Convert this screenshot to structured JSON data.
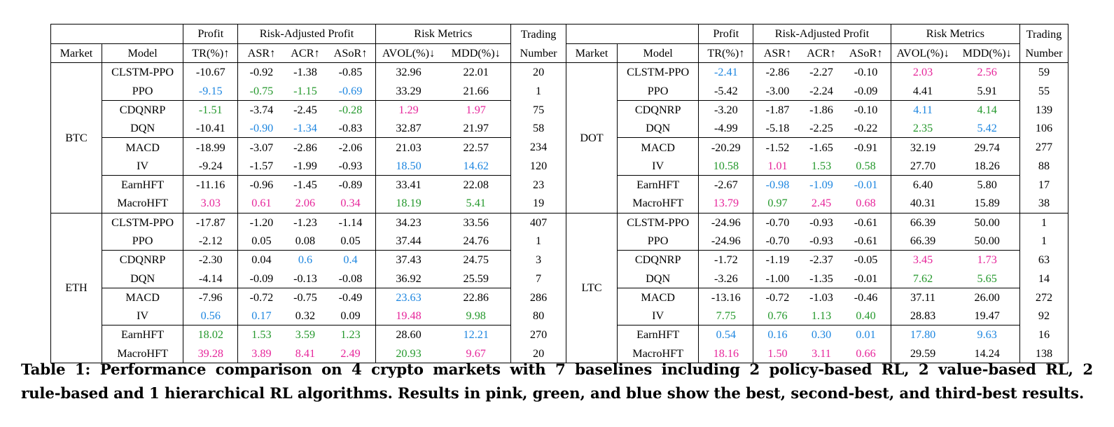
{
  "headers": {
    "profit": "Profit",
    "risk_adjusted": "Risk-Adjusted Profit",
    "risk_metrics": "Risk Metrics",
    "trading": "Trading",
    "number": "Number",
    "market": "Market",
    "model": "Model",
    "tr": "TR(%)↑",
    "asr": "ASR↑",
    "acr": "ACR↑",
    "asor": "ASoR↑",
    "avol": "AVOL(%)↓",
    "mdd": "MDD(%)↓"
  },
  "colors": {
    "pink": "#e6259a",
    "green": "#24982c",
    "blue": "#1d86e0",
    "legend": {
      "pink": "best",
      "green": "second-best",
      "blue": "third-best"
    }
  },
  "left_blocks": [
    {
      "market": "BTC",
      "rows": [
        {
          "model": "CLSTM-PPO",
          "v": [
            "-10.67",
            "-0.92",
            "-1.38",
            "-0.85",
            "32.96",
            "22.01",
            "20"
          ],
          "c": [
            "",
            "",
            "",
            "",
            "",
            "",
            ""
          ]
        },
        {
          "model": "PPO",
          "v": [
            "-9.15",
            "-0.75",
            "-1.15",
            "-0.69",
            "33.29",
            "21.66",
            "1"
          ],
          "c": [
            "blue",
            "green",
            "green",
            "blue",
            "",
            "",
            ""
          ]
        },
        {
          "model": "CDQNRP",
          "v": [
            "-1.51",
            "-3.74",
            "-2.45",
            "-0.28",
            "1.29",
            "1.97",
            "75"
          ],
          "c": [
            "green",
            "",
            "",
            "green",
            "pink",
            "pink",
            ""
          ]
        },
        {
          "model": "DQN",
          "v": [
            "-10.41",
            "-0.90",
            "-1.34",
            "-0.83",
            "32.87",
            "21.97",
            "58"
          ],
          "c": [
            "",
            "blue",
            "blue",
            "",
            "",
            "",
            ""
          ]
        },
        {
          "model": "MACD",
          "v": [
            "-18.99",
            "-3.07",
            "-2.86",
            "-2.06",
            "21.03",
            "22.57",
            "234"
          ],
          "c": [
            "",
            "",
            "",
            "",
            "",
            "",
            ""
          ]
        },
        {
          "model": "IV",
          "v": [
            "-9.24",
            "-1.57",
            "-1.99",
            "-0.93",
            "18.50",
            "14.62",
            "120"
          ],
          "c": [
            "",
            "",
            "",
            "",
            "blue",
            "blue",
            ""
          ]
        },
        {
          "model": "EarnHFT",
          "v": [
            "-11.16",
            "-0.96",
            "-1.45",
            "-0.89",
            "33.41",
            "22.08",
            "23"
          ],
          "c": [
            "",
            "",
            "",
            "",
            "",
            "",
            ""
          ]
        },
        {
          "model": "MacroHFT",
          "v": [
            "3.03",
            "0.61",
            "2.06",
            "0.34",
            "18.19",
            "5.41",
            "19"
          ],
          "c": [
            "pink",
            "pink",
            "pink",
            "pink",
            "green",
            "green",
            ""
          ]
        }
      ]
    },
    {
      "market": "ETH",
      "rows": [
        {
          "model": "CLSTM-PPO",
          "v": [
            "-17.87",
            "-1.20",
            "-1.23",
            "-1.14",
            "34.23",
            "33.56",
            "407"
          ],
          "c": [
            "",
            "",
            "",
            "",
            "",
            "",
            ""
          ]
        },
        {
          "model": "PPO",
          "v": [
            "-2.12",
            "0.05",
            "0.08",
            "0.05",
            "37.44",
            "24.76",
            "1"
          ],
          "c": [
            "",
            "",
            "",
            "",
            "",
            "",
            ""
          ]
        },
        {
          "model": "CDQNRP",
          "v": [
            "-2.30",
            "0.04",
            "0.6",
            "0.4",
            "37.43",
            "24.75",
            "3"
          ],
          "c": [
            "",
            "",
            "blue",
            "blue",
            "",
            "",
            ""
          ]
        },
        {
          "model": "DQN",
          "v": [
            "-4.14",
            "-0.09",
            "-0.13",
            "-0.08",
            "36.92",
            "25.59",
            "7"
          ],
          "c": [
            "",
            "",
            "",
            "",
            "",
            "",
            ""
          ]
        },
        {
          "model": "MACD",
          "v": [
            "-7.96",
            "-0.72",
            "-0.75",
            "-0.49",
            "23.63",
            "22.86",
            "286"
          ],
          "c": [
            "",
            "",
            "",
            "",
            "blue",
            "",
            ""
          ]
        },
        {
          "model": "IV",
          "v": [
            "0.56",
            "0.17",
            "0.32",
            "0.09",
            "19.48",
            "9.98",
            "80"
          ],
          "c": [
            "blue",
            "blue",
            "",
            "",
            "pink",
            "green",
            ""
          ]
        },
        {
          "model": "EarnHFT",
          "v": [
            "18.02",
            "1.53",
            "3.59",
            "1.23",
            "28.60",
            "12.21",
            "270"
          ],
          "c": [
            "green",
            "green",
            "green",
            "green",
            "",
            "blue",
            ""
          ]
        },
        {
          "model": "MacroHFT",
          "v": [
            "39.28",
            "3.89",
            "8.41",
            "2.49",
            "20.93",
            "9.67",
            "20"
          ],
          "c": [
            "pink",
            "pink",
            "pink",
            "pink",
            "green",
            "pink",
            ""
          ]
        }
      ]
    }
  ],
  "right_blocks": [
    {
      "market": "DOT",
      "rows": [
        {
          "model": "CLSTM-PPO",
          "v": [
            "-2.41",
            "-2.86",
            "-2.27",
            "-0.10",
            "2.03",
            "2.56",
            "59"
          ],
          "c": [
            "blue",
            "",
            "",
            "",
            "pink",
            "pink",
            ""
          ]
        },
        {
          "model": "PPO",
          "v": [
            "-5.42",
            "-3.00",
            "-2.24",
            "-0.09",
            "4.41",
            "5.91",
            "55"
          ],
          "c": [
            "",
            "",
            "",
            "",
            "",
            "",
            ""
          ]
        },
        {
          "model": "CDQNRP",
          "v": [
            "-3.20",
            "-1.87",
            "-1.86",
            "-0.10",
            "4.11",
            "4.14",
            "139"
          ],
          "c": [
            "",
            "",
            "",
            "",
            "blue",
            "green",
            ""
          ]
        },
        {
          "model": "DQN",
          "v": [
            "-4.99",
            "-5.18",
            "-2.25",
            "-0.22",
            "2.35",
            "5.42",
            "106"
          ],
          "c": [
            "",
            "",
            "",
            "",
            "green",
            "blue",
            ""
          ]
        },
        {
          "model": "MACD",
          "v": [
            "-20.29",
            "-1.52",
            "-1.65",
            "-0.91",
            "32.19",
            "29.74",
            "277"
          ],
          "c": [
            "",
            "",
            "",
            "",
            "",
            "",
            ""
          ]
        },
        {
          "model": "IV",
          "v": [
            "10.58",
            "1.01",
            "1.53",
            "0.58",
            "27.70",
            "18.26",
            "88"
          ],
          "c": [
            "green",
            "pink",
            "green",
            "green",
            "",
            "",
            ""
          ]
        },
        {
          "model": "EarnHFT",
          "v": [
            "-2.67",
            "-0.98",
            "-1.09",
            "-0.01",
            "6.40",
            "5.80",
            "17"
          ],
          "c": [
            "",
            "blue",
            "blue",
            "blue",
            "",
            "",
            ""
          ]
        },
        {
          "model": "MacroHFT",
          "v": [
            "13.79",
            "0.97",
            "2.45",
            "0.68",
            "40.31",
            "15.89",
            "38"
          ],
          "c": [
            "pink",
            "green",
            "pink",
            "pink",
            "",
            "",
            ""
          ]
        }
      ]
    },
    {
      "market": "LTC",
      "rows": [
        {
          "model": "CLSTM-PPO",
          "v": [
            "-24.96",
            "-0.70",
            "-0.93",
            "-0.61",
            "66.39",
            "50.00",
            "1"
          ],
          "c": [
            "",
            "",
            "",
            "",
            "",
            "",
            ""
          ]
        },
        {
          "model": "PPO",
          "v": [
            "-24.96",
            "-0.70",
            "-0.93",
            "-0.61",
            "66.39",
            "50.00",
            "1"
          ],
          "c": [
            "",
            "",
            "",
            "",
            "",
            "",
            ""
          ]
        },
        {
          "model": "CDQNRP",
          "v": [
            "-1.72",
            "-1.19",
            "-2.37",
            "-0.05",
            "3.45",
            "1.73",
            "63"
          ],
          "c": [
            "",
            "",
            "",
            "",
            "pink",
            "pink",
            ""
          ]
        },
        {
          "model": "DQN",
          "v": [
            "-3.26",
            "-1.00",
            "-1.35",
            "-0.01",
            "7.62",
            "5.65",
            "14"
          ],
          "c": [
            "",
            "",
            "",
            "",
            "green",
            "green",
            ""
          ]
        },
        {
          "model": "MACD",
          "v": [
            "-13.16",
            "-0.72",
            "-1.03",
            "-0.46",
            "37.11",
            "26.00",
            "272"
          ],
          "c": [
            "",
            "",
            "",
            "",
            "",
            "",
            ""
          ]
        },
        {
          "model": "IV",
          "v": [
            "7.75",
            "0.76",
            "1.13",
            "0.40",
            "28.83",
            "19.47",
            "92"
          ],
          "c": [
            "green",
            "green",
            "green",
            "green",
            "",
            "",
            ""
          ]
        },
        {
          "model": "EarnHFT",
          "v": [
            "0.54",
            "0.16",
            "0.30",
            "0.01",
            "17.80",
            "9.63",
            "16"
          ],
          "c": [
            "blue",
            "blue",
            "blue",
            "blue",
            "blue",
            "blue",
            ""
          ]
        },
        {
          "model": "MacroHFT",
          "v": [
            "18.16",
            "1.50",
            "3.11",
            "0.66",
            "29.59",
            "14.24",
            "138"
          ],
          "c": [
            "pink",
            "pink",
            "pink",
            "pink",
            "",
            "",
            ""
          ]
        }
      ]
    }
  ],
  "caption": {
    "line1": "Table 1: Performance comparison on 4 crypto markets with 7 baselines including 2 policy-based RL, 2 value-based RL, 2",
    "line2": "rule-based and 1 hierarchical RL algorithms. Results in pink, green, and blue show the best, second-best, and third-best results."
  }
}
